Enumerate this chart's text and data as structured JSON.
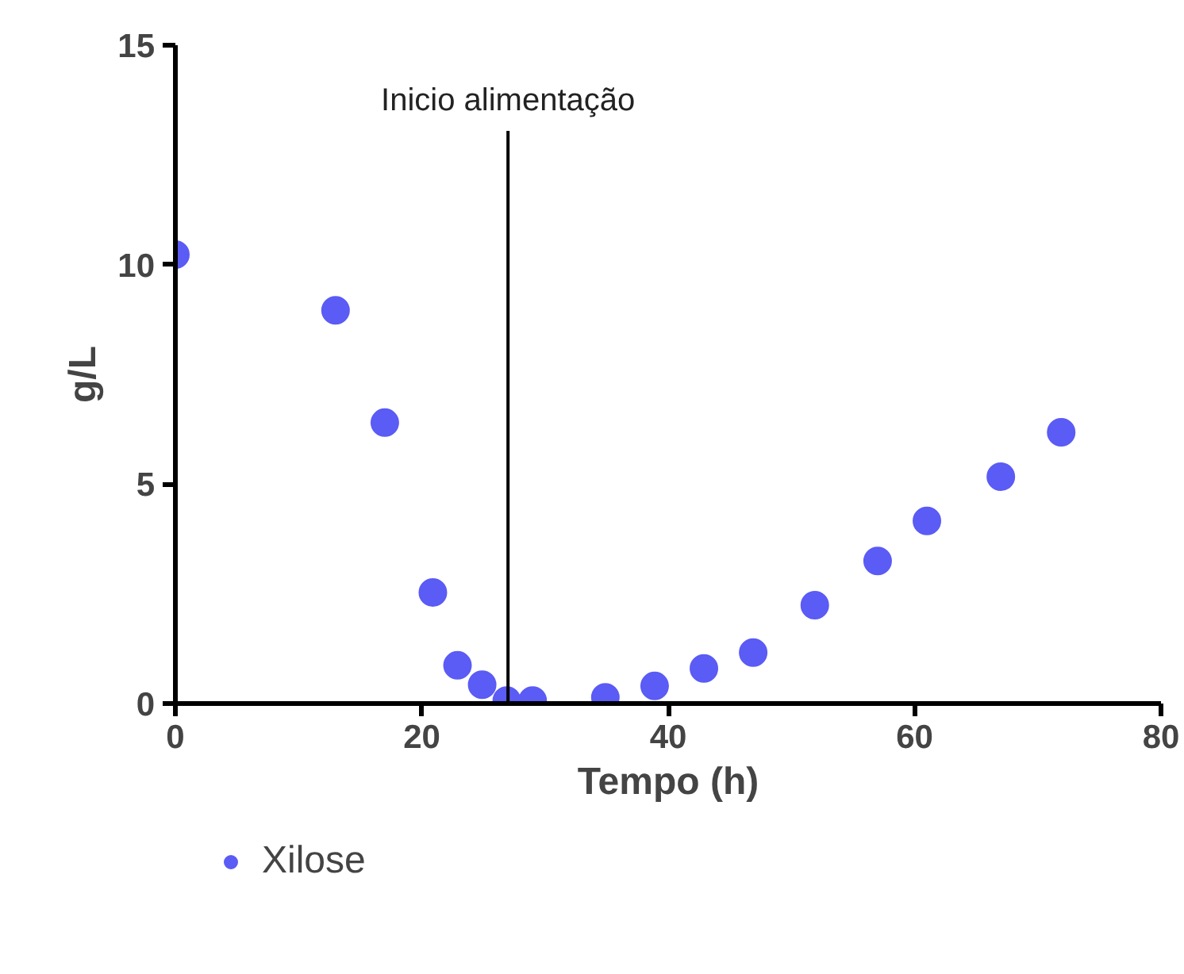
{
  "chart_data": {
    "type": "scatter",
    "xlabel": "Tempo (h)",
    "ylabel": "g/L",
    "xlim": [
      0,
      80
    ],
    "ylim": [
      0,
      15
    ],
    "xticks": [
      0,
      20,
      40,
      60,
      80
    ],
    "yticks": [
      0,
      5,
      10,
      15
    ],
    "grid": false,
    "legend": "bottom left",
    "marker": "circle",
    "ref_lines": [
      {
        "axis": "x",
        "value": 27,
        "label": "Inicio alimentação",
        "color": "#000000"
      }
    ],
    "series": [
      {
        "name": "Xilose",
        "color": "#5b5bf5",
        "x": [
          0,
          13,
          17,
          20.9,
          22.9,
          24.9,
          26.9,
          29,
          34.9,
          38.9,
          42.9,
          46.9,
          51.9,
          57,
          61,
          67,
          71.9
        ],
        "values": [
          10.23,
          8.96,
          6.4,
          2.53,
          0.87,
          0.43,
          0.07,
          0.07,
          0.14,
          0.4,
          0.8,
          1.16,
          2.24,
          3.25,
          4.16,
          5.17,
          6.18
        ]
      }
    ]
  }
}
